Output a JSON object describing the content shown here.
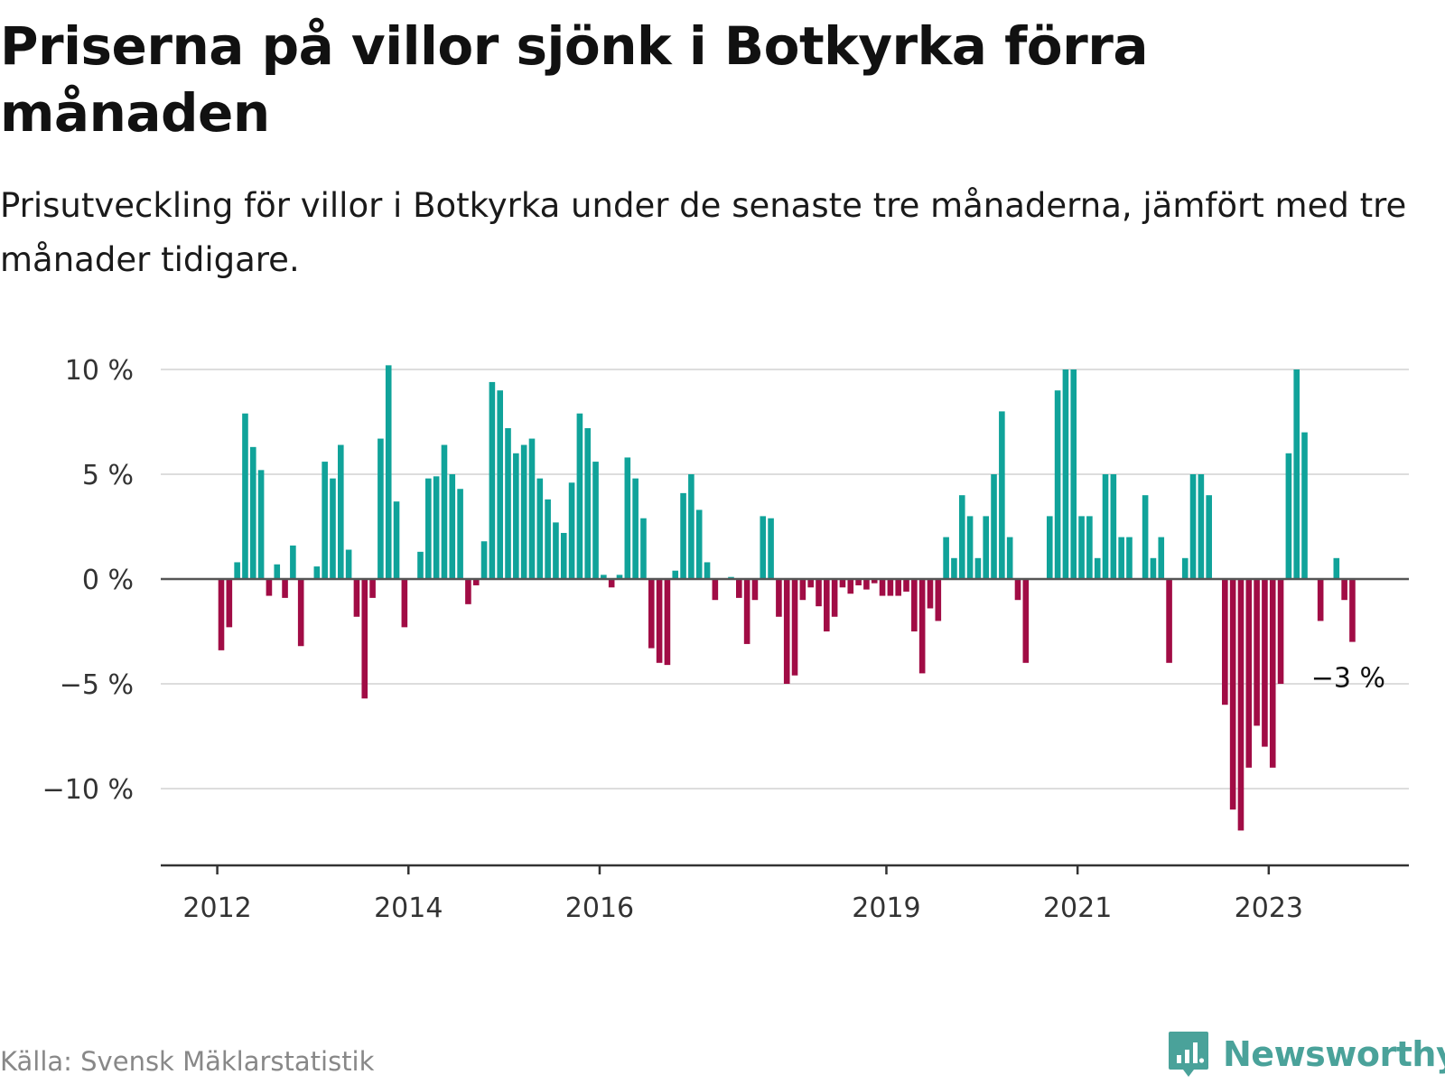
{
  "title": "Priserna på villor sjönk i Botkyrka förra månaden",
  "subtitle": "Prisutveckling för villor i Botkyrka under de senaste tre månaderna, jämfört med tre månader tidigare.",
  "source": "Källa: Svensk Mäklarstatistik",
  "brand": "Newsworthy",
  "colors": {
    "positive": "#10a39a",
    "negative": "#a10c45",
    "grid": "#dddddd",
    "axis": "#333333",
    "brand": "#4aa29a"
  },
  "chart_data": {
    "type": "bar",
    "title": "Priserna på villor sjönk i Botkyrka förra månaden",
    "ylabel": "",
    "xlabel": "",
    "ylim": [
      -13,
      10.5
    ],
    "y_ticks": [
      {
        "value": 10,
        "label": "10 %"
      },
      {
        "value": 5,
        "label": "5 %"
      },
      {
        "value": 0,
        "label": "0 %"
      },
      {
        "value": -5,
        "label": "−5 %"
      },
      {
        "value": -10,
        "label": "−10 %"
      }
    ],
    "x_ticks": [
      {
        "index": 0,
        "label": "2012"
      },
      {
        "index": 24,
        "label": "2014"
      },
      {
        "index": 48,
        "label": "2016"
      },
      {
        "index": 84,
        "label": "2019"
      },
      {
        "index": 108,
        "label": "2021"
      },
      {
        "index": 132,
        "label": "2023"
      }
    ],
    "series_start": "2012-01",
    "values": [
      -3.4,
      -2.3,
      0.8,
      7.9,
      6.3,
      5.2,
      -0.8,
      0.7,
      -0.9,
      1.6,
      -3.2,
      null,
      0.6,
      5.6,
      4.8,
      6.4,
      1.4,
      -1.8,
      -5.7,
      -0.9,
      6.7,
      10.2,
      3.7,
      -2.3,
      null,
      1.3,
      4.8,
      4.9,
      6.4,
      5.0,
      4.3,
      -1.2,
      -0.3,
      1.8,
      9.4,
      9.0,
      7.2,
      6.0,
      6.4,
      6.7,
      4.8,
      3.8,
      2.7,
      2.2,
      4.6,
      7.9,
      7.2,
      5.6,
      0.2,
      -0.4,
      0.2,
      5.8,
      4.8,
      2.9,
      -3.3,
      -4.0,
      -4.1,
      0.4,
      4.1,
      5.0,
      3.3,
      0.8,
      -1.0,
      null,
      0.1,
      -0.9,
      -3.1,
      -1.0,
      3.0,
      2.9,
      -1.8,
      -5.0,
      -4.6,
      -1.0,
      -0.4,
      -1.3,
      -2.5,
      -1.8,
      -0.4,
      -0.7,
      -0.3,
      -0.5,
      -0.2,
      -0.8,
      -0.8,
      -0.8,
      -0.6,
      -2.5,
      -4.5,
      -1.4,
      -2.0,
      2.0,
      1.0,
      4.0,
      3.0,
      1.0,
      3.0,
      5.0,
      8.0,
      2.0,
      -1.0,
      -4.0,
      null,
      null,
      3.0,
      9.0,
      10.0,
      10.0,
      3.0,
      3.0,
      1.0,
      5.0,
      5.0,
      2.0,
      2.0,
      null,
      4.0,
      1.0,
      2.0,
      -4.0,
      null,
      1.0,
      5.0,
      5.0,
      4.0,
      null,
      -6.0,
      -11.0,
      -12.0,
      -9.0,
      -7.0,
      -8.0,
      -9.0,
      -5.0,
      6.0,
      10.0,
      7.0,
      null,
      -2.0,
      null,
      1.0,
      -1.0,
      -3.0
    ],
    "last_value_label": "−3 %"
  }
}
